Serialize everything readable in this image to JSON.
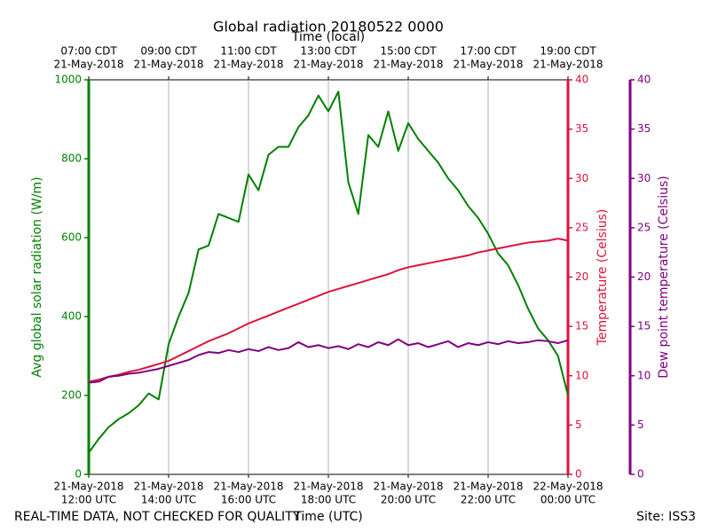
{
  "chart_data": {
    "type": "line",
    "title": "Global radiation 20180522 0000",
    "xlabel": "Time (UTC)",
    "x2label": "Time (local)",
    "xlim": [
      "2018-05-21T12:00",
      "2018-05-22T00:00"
    ],
    "xticks": [
      {
        "value": "2018-05-21T12:00",
        "label": [
          "21-May-2018",
          "12:00 UTC"
        ]
      },
      {
        "value": "2018-05-21T14:00",
        "label": [
          "21-May-2018",
          "14:00 UTC"
        ]
      },
      {
        "value": "2018-05-21T16:00",
        "label": [
          "21-May-2018",
          "16:00 UTC"
        ]
      },
      {
        "value": "2018-05-21T18:00",
        "label": [
          "21-May-2018",
          "18:00 UTC"
        ]
      },
      {
        "value": "2018-05-21T20:00",
        "label": [
          "21-May-2018",
          "20:00 UTC"
        ]
      },
      {
        "value": "2018-05-21T22:00",
        "label": [
          "21-May-2018",
          "22:00 UTC"
        ]
      },
      {
        "value": "2018-05-22T00:00",
        "label": [
          "22-May-2018",
          "00:00 UTC"
        ]
      }
    ],
    "x2ticks": [
      {
        "value": "2018-05-21T12:00",
        "label": [
          "07:00 CDT",
          "21-May-2018"
        ]
      },
      {
        "value": "2018-05-21T14:00",
        "label": [
          "09:00 CDT",
          "21-May-2018"
        ]
      },
      {
        "value": "2018-05-21T16:00",
        "label": [
          "11:00 CDT",
          "21-May-2018"
        ]
      },
      {
        "value": "2018-05-21T18:00",
        "label": [
          "13:00 CDT",
          "21-May-2018"
        ]
      },
      {
        "value": "2018-05-21T20:00",
        "label": [
          "15:00 CDT",
          "21-May-2018"
        ]
      },
      {
        "value": "2018-05-21T22:00",
        "label": [
          "17:00 CDT",
          "21-May-2018"
        ]
      },
      {
        "value": "2018-05-22T00:00",
        "label": [
          "19:00 CDT",
          "21-May-2018"
        ]
      }
    ],
    "grid": true,
    "ylabel": "Avg global solar radiation (W/m)",
    "ylim": [
      0,
      1000
    ],
    "yticks": [
      0,
      200,
      400,
      600,
      800,
      1000
    ],
    "ycolor": "#008000",
    "y2label": "Temperature (Celsius)",
    "y2lim": [
      0,
      40
    ],
    "y2ticks": [
      0,
      5,
      10,
      15,
      20,
      25,
      30,
      35,
      40
    ],
    "y2color": "#dc143c",
    "y3label": "Dew point temperature (Celsius)",
    "y3lim": [
      0,
      40
    ],
    "y3ticks": [
      0,
      5,
      10,
      15,
      20,
      25,
      30,
      35,
      40
    ],
    "y3color": "#800080",
    "x": [
      "2018-05-21T12:00",
      "2018-05-21T12:15",
      "2018-05-21T12:30",
      "2018-05-21T12:45",
      "2018-05-21T13:00",
      "2018-05-21T13:15",
      "2018-05-21T13:30",
      "2018-05-21T13:45",
      "2018-05-21T14:00",
      "2018-05-21T14:15",
      "2018-05-21T14:30",
      "2018-05-21T14:45",
      "2018-05-21T15:00",
      "2018-05-21T15:15",
      "2018-05-21T15:30",
      "2018-05-21T15:45",
      "2018-05-21T16:00",
      "2018-05-21T16:15",
      "2018-05-21T16:30",
      "2018-05-21T16:45",
      "2018-05-21T17:00",
      "2018-05-21T17:15",
      "2018-05-21T17:30",
      "2018-05-21T17:45",
      "2018-05-21T18:00",
      "2018-05-21T18:15",
      "2018-05-21T18:30",
      "2018-05-21T18:45",
      "2018-05-21T19:00",
      "2018-05-21T19:15",
      "2018-05-21T19:30",
      "2018-05-21T19:45",
      "2018-05-21T20:00",
      "2018-05-21T20:15",
      "2018-05-21T20:30",
      "2018-05-21T20:45",
      "2018-05-21T21:00",
      "2018-05-21T21:15",
      "2018-05-21T21:30",
      "2018-05-21T21:45",
      "2018-05-21T22:00",
      "2018-05-21T22:15",
      "2018-05-21T22:30",
      "2018-05-21T22:45",
      "2018-05-21T23:00",
      "2018-05-21T23:15",
      "2018-05-21T23:30",
      "2018-05-21T23:45",
      "2018-05-22T00:00"
    ],
    "series": [
      {
        "name": "Avg global solar radiation",
        "color": "#008000",
        "axis": "y",
        "values": [
          55,
          90,
          120,
          140,
          155,
          175,
          205,
          190,
          330,
          400,
          460,
          570,
          580,
          660,
          650,
          640,
          760,
          720,
          810,
          830,
          830,
          880,
          910,
          960,
          920,
          970,
          740,
          660,
          860,
          830,
          920,
          820,
          890,
          850,
          820,
          790,
          750,
          720,
          680,
          650,
          610,
          560,
          530,
          480,
          420,
          370,
          340,
          300,
          200
        ]
      },
      {
        "name": "Temperature",
        "color": "#dc143c",
        "axis": "y2",
        "values": [
          9.4,
          9.6,
          9.9,
          10.1,
          10.4,
          10.6,
          10.9,
          11.2,
          11.5,
          12.0,
          12.5,
          13.0,
          13.5,
          13.9,
          14.3,
          14.8,
          15.3,
          15.7,
          16.1,
          16.5,
          16.9,
          17.3,
          17.7,
          18.1,
          18.5,
          18.8,
          19.1,
          19.4,
          19.7,
          20.0,
          20.3,
          20.7,
          21.0,
          21.2,
          21.4,
          21.6,
          21.8,
          22.0,
          22.2,
          22.5,
          22.7,
          22.9,
          23.1,
          23.3,
          23.5,
          23.6,
          23.7,
          23.9,
          23.7
        ]
      },
      {
        "name": "Dew point temperature",
        "color": "#800080",
        "axis": "y3",
        "values": [
          9.3,
          9.4,
          9.9,
          10.0,
          10.2,
          10.3,
          10.5,
          10.7,
          11.0,
          11.3,
          11.6,
          12.1,
          12.4,
          12.3,
          12.6,
          12.4,
          12.7,
          12.5,
          12.9,
          12.6,
          12.8,
          13.4,
          12.9,
          13.1,
          12.8,
          13.0,
          12.7,
          13.2,
          12.9,
          13.4,
          13.1,
          13.7,
          13.1,
          13.3,
          12.9,
          13.2,
          13.5,
          12.9,
          13.3,
          13.1,
          13.4,
          13.2,
          13.5,
          13.3,
          13.4,
          13.6,
          13.5,
          13.3,
          13.6
        ]
      }
    ],
    "annotations": [
      "REAL-TIME DATA, NOT CHECKED FOR QUALITY",
      "Site: ISS3"
    ]
  }
}
